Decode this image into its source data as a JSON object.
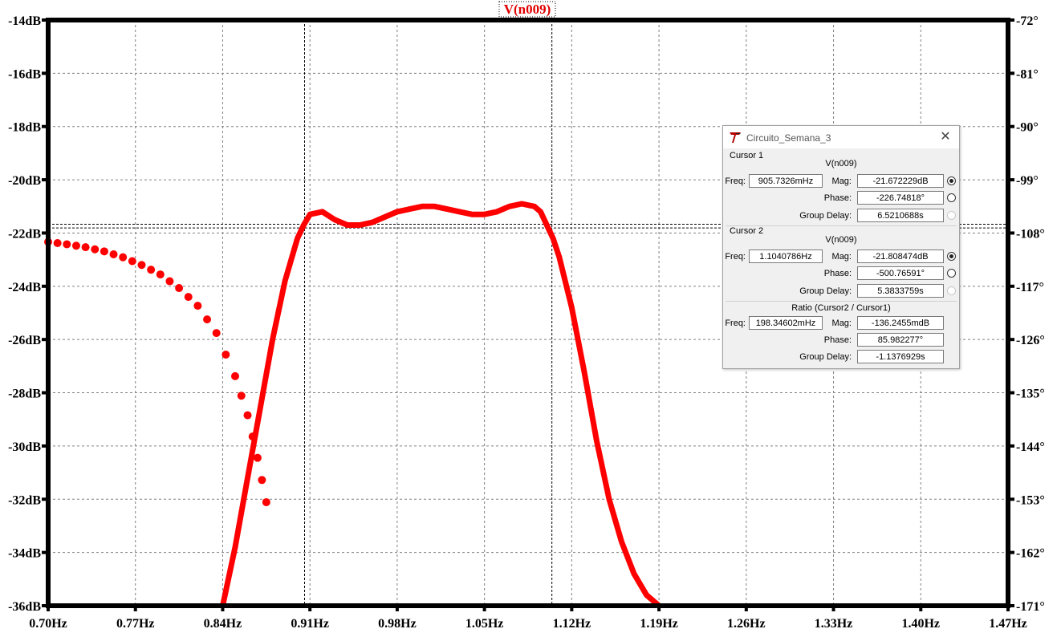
{
  "chart_data": {
    "type": "line",
    "title": "V(n009)",
    "x_ticks": [
      "0.70Hz",
      "0.77Hz",
      "0.84Hz",
      "0.91Hz",
      "0.98Hz",
      "1.05Hz",
      "1.12Hz",
      "1.19Hz",
      "1.26Hz",
      "1.33Hz",
      "1.40Hz",
      "1.47Hz"
    ],
    "y_left_ticks": [
      "-14dB",
      "-16dB",
      "-18dB",
      "-20dB",
      "-22dB",
      "-24dB",
      "-26dB",
      "-28dB",
      "-30dB",
      "-32dB",
      "-34dB",
      "-36dB"
    ],
    "y_right_ticks": [
      "-72°",
      "-81°",
      "-90°",
      "-99°",
      "-108°",
      "-117°",
      "-126°",
      "-135°",
      "-144°",
      "-153°",
      "-162°",
      "-171°"
    ],
    "xlim": [
      0.7,
      1.47
    ],
    "ylim_left": [
      -36,
      -14
    ],
    "ylim_right": [
      -171,
      -72
    ],
    "grid": true,
    "cursor_lines_db": [
      -21.67,
      -21.81
    ],
    "cursor_lines_hz": [
      0.9057,
      1.1041
    ],
    "series": [
      {
        "axis": "magnitude",
        "style": "solid",
        "color": "#ff0000",
        "x": [
          0.84,
          0.85,
          0.86,
          0.87,
          0.88,
          0.89,
          0.9,
          0.905,
          0.91,
          0.92,
          0.93,
          0.94,
          0.95,
          0.96,
          0.97,
          0.98,
          0.99,
          1.0,
          1.01,
          1.02,
          1.03,
          1.04,
          1.05,
          1.06,
          1.07,
          1.08,
          1.09,
          1.095,
          1.1,
          1.105,
          1.11,
          1.12,
          1.13,
          1.14,
          1.15,
          1.16,
          1.17,
          1.18,
          1.19
        ],
        "y": [
          -36.0,
          -33.8,
          -31.2,
          -28.6,
          -26.0,
          -23.8,
          -22.2,
          -21.7,
          -21.3,
          -21.2,
          -21.5,
          -21.7,
          -21.7,
          -21.6,
          -21.4,
          -21.2,
          -21.1,
          -21.0,
          -21.0,
          -21.1,
          -21.2,
          -21.3,
          -21.3,
          -21.2,
          -21.0,
          -20.9,
          -21.0,
          -21.2,
          -21.7,
          -22.2,
          -22.9,
          -24.8,
          -27.2,
          -29.8,
          -32.0,
          -33.6,
          -34.8,
          -35.6,
          -36.0
        ]
      },
      {
        "axis": "phase",
        "style": "dotted",
        "color": "#ff0000",
        "x": [
          0.7,
          0.715,
          0.73,
          0.745,
          0.76,
          0.775,
          0.79,
          0.805,
          0.82,
          0.835,
          0.85,
          0.86,
          0.868,
          0.875
        ],
        "y": [
          -109.5,
          -109.9,
          -110.4,
          -111.1,
          -112.1,
          -113.4,
          -115.0,
          -117.3,
          -120.3,
          -124.9,
          -132.2,
          -138.8,
          -146.0,
          -153.5
        ]
      }
    ]
  },
  "cursor_window": {
    "title": "Circuito_Semana_3",
    "app_icon": "ltspice-logo-icon",
    "close_icon": "close-icon",
    "cursor1": {
      "group": "Cursor 1",
      "trace": "V(n009)",
      "freq_label": "Freq:",
      "freq": "905.7326mHz",
      "mag_label": "Mag:",
      "mag": "-21.672229dB",
      "phase_label": "Phase:",
      "phase": "-226.74818°",
      "gd_label": "Group Delay:",
      "group_delay": "6.5210688s"
    },
    "cursor2": {
      "group": "Cursor 2",
      "trace": "V(n009)",
      "freq_label": "Freq:",
      "freq": "1.1040786Hz",
      "mag_label": "Mag:",
      "mag": "-21.808474dB",
      "phase_label": "Phase:",
      "phase": "-500.76591°",
      "gd_label": "Group Delay:",
      "group_delay": "5.3833759s"
    },
    "ratio": {
      "title": "Ratio (Cursor2 / Cursor1)",
      "freq_label": "Freq:",
      "freq": "198.34602mHz",
      "mag_label": "Mag:",
      "mag": "-136.2455mdB",
      "phase_label": "Phase:",
      "phase": "85.982277°",
      "gd_label": "Group Delay:",
      "group_delay": "-1.1376929s"
    }
  }
}
